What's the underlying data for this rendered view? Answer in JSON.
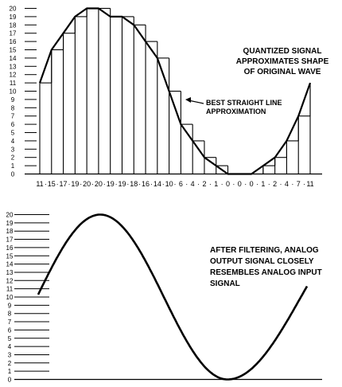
{
  "chart_data": [
    {
      "type": "bar",
      "title": "",
      "y_ticks": [
        "0",
        "1",
        "2",
        "3",
        "4",
        "5",
        "6",
        "7",
        "8",
        "9",
        "10",
        "11",
        "12",
        "13",
        "14",
        "15",
        "16",
        "17",
        "18",
        "19",
        "20"
      ],
      "ylim": [
        0,
        20
      ],
      "samples": [
        11,
        15,
        17,
        19,
        20,
        20,
        19,
        19,
        18,
        16,
        14,
        10,
        6,
        4,
        2,
        1,
        0,
        0,
        0,
        1,
        2,
        4,
        7,
        11
      ],
      "sample_label_parts": [
        "11",
        "15",
        "17",
        "19",
        "20",
        "20",
        "19",
        "19",
        "18",
        "16",
        "14",
        "10",
        "6",
        "4",
        "2",
        "1",
        "0",
        "0",
        "0",
        "1",
        "2",
        "4",
        "7",
        "11"
      ],
      "caption_lines": [
        "QUANTIZED SIGNAL",
        "APPROXIMATES SHAPE",
        "OF ORIGINAL WAVE"
      ],
      "approx_note_lines": [
        "BEST STRAIGHT LINE",
        "APPROXIMATION"
      ]
    },
    {
      "type": "line",
      "title": "",
      "y_ticks": [
        "0",
        "1",
        "2",
        "3",
        "4",
        "5",
        "6",
        "7",
        "8",
        "9",
        "10",
        "11",
        "12",
        "13",
        "14",
        "15",
        "16",
        "17",
        "18",
        "19",
        "20"
      ],
      "ylim": [
        0,
        20
      ],
      "curve": {
        "amplitude": 10,
        "offset": 10,
        "start_value": 10.3,
        "end_value": 11.3
      },
      "caption_lines": [
        "AFTER FILTERING, ANALOG",
        "OUTPUT SIGNAL CLOSELY",
        "RESEMBLES ANALOG INPUT",
        "SIGNAL"
      ]
    }
  ]
}
